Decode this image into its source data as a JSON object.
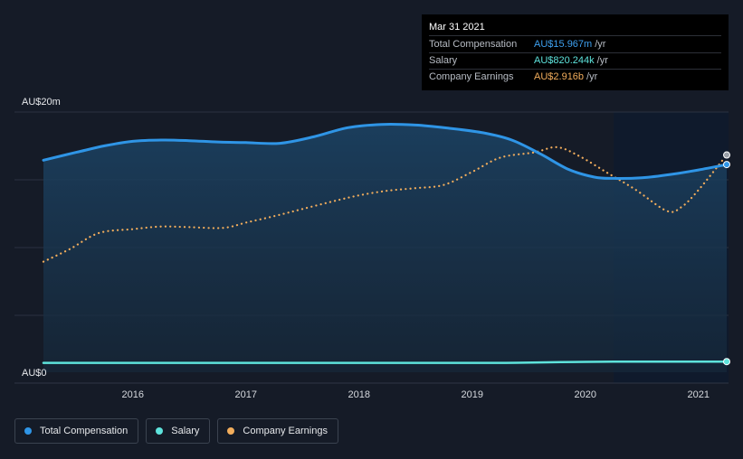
{
  "tooltip": {
    "date": "Mar 31 2021",
    "rows": [
      {
        "label": "Total Compensation",
        "value": "AU$15.967m",
        "unit": "/yr",
        "color": "#3ea0ef"
      },
      {
        "label": "Salary",
        "value": "AU$820.244k",
        "unit": "/yr",
        "color": "#5ee3dc"
      },
      {
        "label": "Company Earnings",
        "value": "AU$2.916b",
        "unit": "/yr",
        "color": "#f2ad5c"
      }
    ]
  },
  "legend": [
    {
      "label": "Total Compensation",
      "color": "#2f95e6"
    },
    {
      "label": "Salary",
      "color": "#5ee3dc"
    },
    {
      "label": "Company Earnings",
      "color": "#f2ad5c"
    }
  ],
  "chart_data": {
    "type": "line",
    "y_axis_labels": [
      "AU$20m",
      "AU$0"
    ],
    "ylim": [
      0,
      20
    ],
    "y_unit": "AU$m",
    "x_ticks": [
      "2016",
      "2017",
      "2018",
      "2019",
      "2020",
      "2021"
    ],
    "xlim": [
      2015.21,
      2021.25
    ],
    "forecast_start": 2020.25,
    "grid": true,
    "legend_position": "bottom-left",
    "series": [
      {
        "name": "Total Compensation",
        "color": "#2f95e6",
        "style": "solid",
        "x": [
          2015.21,
          2015.5,
          2015.75,
          2016.0,
          2016.25,
          2016.5,
          2016.75,
          2017.0,
          2017.3,
          2017.6,
          2017.9,
          2018.2,
          2018.5,
          2018.8,
          2019.1,
          2019.35,
          2019.6,
          2019.85,
          2020.08,
          2020.25,
          2020.5,
          2020.75,
          2021.0,
          2021.25
        ],
        "y": [
          16.3,
          16.9,
          17.4,
          17.75,
          17.85,
          17.8,
          17.7,
          17.65,
          17.6,
          18.1,
          18.8,
          19.05,
          19.0,
          18.75,
          18.4,
          17.85,
          16.8,
          15.6,
          15.0,
          14.9,
          14.95,
          15.2,
          15.55,
          15.967
        ]
      },
      {
        "name": "Salary",
        "color": "#5ee3dc",
        "style": "solid",
        "x": [
          2015.21,
          2016.0,
          2017.0,
          2018.0,
          2019.0,
          2019.3,
          2019.6,
          2020.0,
          2020.25,
          2020.6,
          2021.0,
          2021.25
        ],
        "y": [
          0.72,
          0.72,
          0.72,
          0.72,
          0.72,
          0.72,
          0.76,
          0.8,
          0.81,
          0.815,
          0.82,
          0.82
        ]
      },
      {
        "name": "Company Earnings",
        "color": "#f2ad5c",
        "style": "dotted",
        "unit_note": "scaled to chart axis",
        "x": [
          2015.21,
          2015.45,
          2015.7,
          2016.0,
          2016.25,
          2016.5,
          2016.8,
          2017.0,
          2017.25,
          2017.5,
          2017.8,
          2018.0,
          2018.25,
          2018.5,
          2018.75,
          2019.0,
          2019.25,
          2019.55,
          2019.75,
          2019.95,
          2020.2,
          2020.45,
          2020.72,
          2020.85,
          2021.0,
          2021.25
        ],
        "y": [
          8.5,
          9.5,
          10.7,
          11.0,
          11.2,
          11.15,
          11.1,
          11.5,
          12.0,
          12.55,
          13.2,
          13.6,
          13.95,
          14.15,
          14.4,
          15.4,
          16.5,
          16.9,
          17.3,
          16.6,
          15.3,
          14.0,
          12.4,
          12.7,
          14.0,
          16.7
        ]
      }
    ]
  }
}
